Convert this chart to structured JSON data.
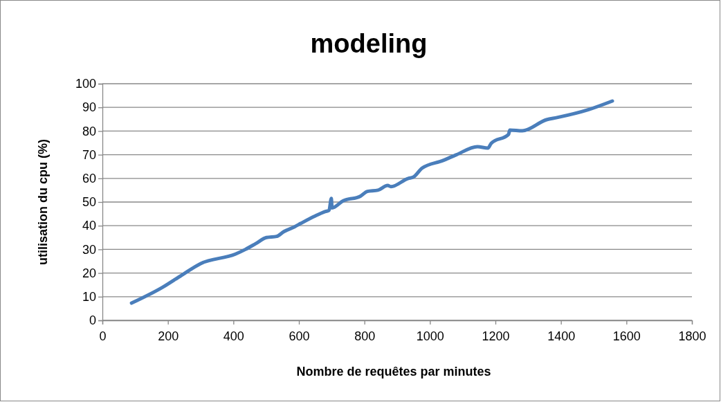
{
  "chart_data": {
    "type": "line",
    "title": "modeling",
    "xlabel": "Nombre de requêtes par minutes",
    "ylabel": "utilisation du cpu (%)",
    "xlim": [
      0,
      1800
    ],
    "xticks": [
      0,
      200,
      400,
      600,
      800,
      1000,
      1200,
      1400,
      1600,
      1800
    ],
    "ylim": [
      0,
      100
    ],
    "yticks": [
      0,
      10,
      20,
      30,
      40,
      50,
      60,
      70,
      80,
      90,
      100
    ],
    "grid": "y",
    "series": [
      {
        "color": "#4a7ebb",
        "x": [
          89,
          184,
          241,
          300,
          406,
          437,
          469,
          501,
          532,
          554,
          586,
          606,
          648,
          681,
          692,
          699,
          701,
          735,
          788,
          809,
          841,
          871,
          881,
          934,
          949,
          976,
          1039,
          1081,
          1145,
          1177,
          1187,
          1240,
          1244,
          1282,
          1356,
          1388,
          1483,
          1557
        ],
        "values": [
          7.3,
          14,
          19,
          24,
          28,
          30,
          32.5,
          35,
          35.5,
          37.5,
          39.5,
          41,
          44,
          46,
          46.5,
          51.5,
          47.5,
          50.5,
          52.5,
          54.5,
          55,
          57,
          56.5,
          60,
          60.5,
          64.3,
          67.5,
          70,
          73.4,
          72.8,
          74.8,
          78.6,
          80.4,
          80.1,
          84.8,
          85.7,
          89,
          92.7
        ]
      }
    ]
  }
}
